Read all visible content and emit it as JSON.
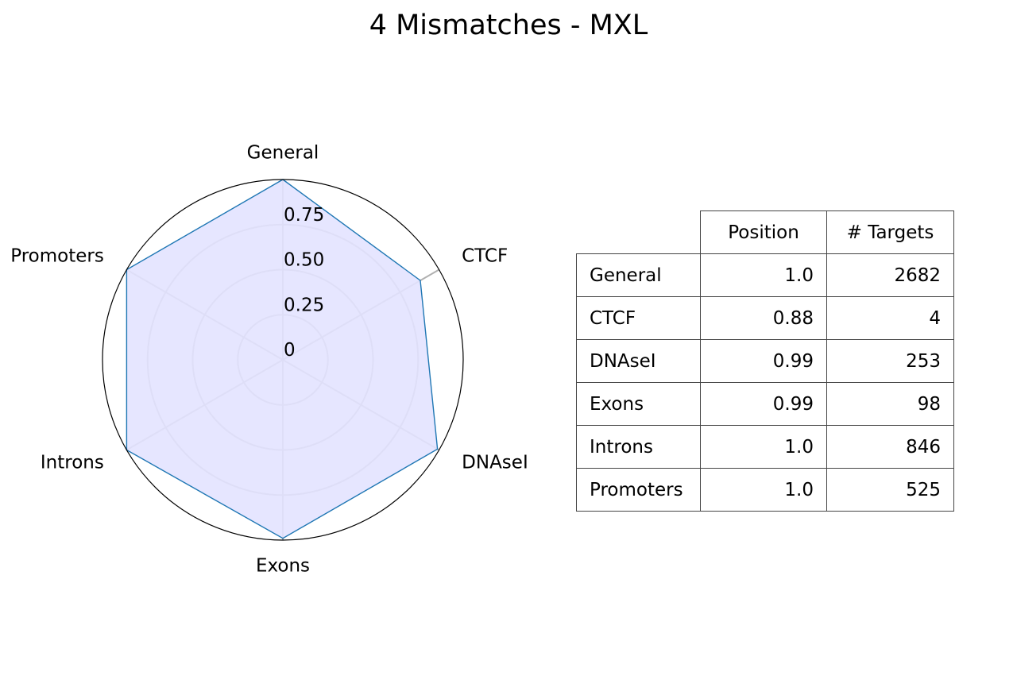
{
  "chart_data": {
    "type": "radar",
    "title": "4 Mismatches - MXL",
    "categories": [
      "General",
      "CTCF",
      "DNAseI",
      "Exons",
      "Introns",
      "Promoters"
    ],
    "values": [
      1.0,
      0.88,
      0.99,
      0.99,
      1.0,
      1.0
    ],
    "rlim": [
      0,
      1
    ],
    "radial_tick_labels": [
      "0",
      "0.25",
      "0.50",
      "0.75"
    ],
    "radial_tick_values": [
      0,
      0.25,
      0.5,
      0.75
    ],
    "grid": true,
    "line_color": "#1f77b4",
    "fill_color": "#e3e3ff",
    "grid_color": "#b0b0b0",
    "table": {
      "columns": [
        "Position",
        "# Targets"
      ],
      "rows": [
        {
          "label": "General",
          "position": "1.0",
          "targets": "2682"
        },
        {
          "label": "CTCF",
          "position": "0.88",
          "targets": "4"
        },
        {
          "label": "DNAseI",
          "position": "0.99",
          "targets": "253"
        },
        {
          "label": "Exons",
          "position": "0.99",
          "targets": "98"
        },
        {
          "label": "Introns",
          "position": "1.0",
          "targets": "846"
        },
        {
          "label": "Promoters",
          "position": "1.0",
          "targets": "525"
        }
      ]
    }
  }
}
